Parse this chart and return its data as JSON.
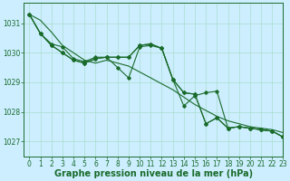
{
  "background_color": "#cceeff",
  "grid_color": "#aaddcc",
  "line_color": "#1a6b2a",
  "xlabel": "Graphe pression niveau de la mer (hPa)",
  "xlim": [
    -0.5,
    23
  ],
  "ylim": [
    1026.5,
    1031.7
  ],
  "yticks": [
    1027,
    1028,
    1029,
    1030,
    1031
  ],
  "xticks": [
    0,
    1,
    2,
    3,
    4,
    5,
    6,
    7,
    8,
    9,
    10,
    11,
    12,
    13,
    14,
    15,
    16,
    17,
    18,
    19,
    20,
    21,
    22,
    23
  ],
  "series": [
    [
      1031.3,
      1031.1,
      1030.7,
      1030.25,
      1030.0,
      1029.75,
      1029.65,
      1029.75,
      1029.65,
      1029.55,
      1029.35,
      1029.15,
      1028.95,
      1028.75,
      1028.5,
      1028.25,
      1028.05,
      1027.85,
      1027.7,
      1027.6,
      1027.5,
      1027.45,
      1027.4,
      1027.3
    ],
    [
      1031.3,
      1030.65,
      1030.25,
      1030.0,
      1029.75,
      1029.65,
      1029.8,
      1029.85,
      1029.85,
      1029.85,
      1030.25,
      1030.3,
      1030.15,
      1029.1,
      1028.65,
      1028.6,
      1027.6,
      1027.8,
      1027.45,
      1027.5,
      1027.45,
      1027.4,
      1027.35,
      1027.15
    ],
    [
      1031.3,
      1030.65,
      1030.25,
      1030.0,
      1029.75,
      1029.65,
      1029.8,
      1029.85,
      1029.85,
      1029.85,
      1030.25,
      1030.3,
      1030.15,
      1029.1,
      1028.2,
      1028.55,
      1028.65,
      1028.7,
      1027.45,
      1027.5,
      1027.45,
      1027.4,
      1027.35,
      1027.15
    ],
    [
      1031.3,
      1030.65,
      1030.3,
      1030.2,
      1029.8,
      1029.7,
      1029.85,
      1029.85,
      1029.5,
      1029.15,
      1030.2,
      1030.25,
      1030.15,
      1029.1,
      1028.65,
      1028.6,
      1027.6,
      1027.8,
      1027.45,
      1027.5,
      1027.45,
      1027.4,
      1027.35,
      1027.15
    ]
  ],
  "xlabel_fontsize": 7,
  "tick_fontsize": 5.5
}
